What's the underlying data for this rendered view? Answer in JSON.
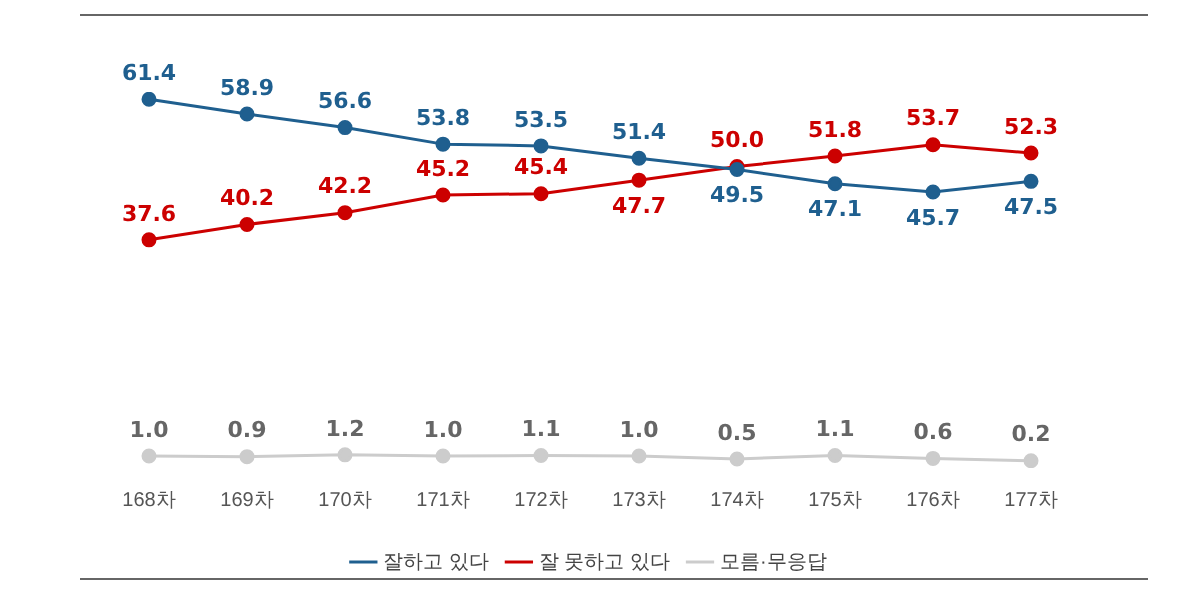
{
  "chart_data": {
    "type": "line",
    "categories": [
      "168차",
      "169차",
      "170차",
      "171차",
      "172차",
      "173차",
      "174차",
      "175차",
      "176차",
      "177차"
    ],
    "series": [
      {
        "name": "잘하고 있다",
        "color": "#1f5f8f",
        "values": [
          61.4,
          58.9,
          56.6,
          53.8,
          53.5,
          51.4,
          49.5,
          47.1,
          45.7,
          47.5
        ],
        "value_labels": [
          "61.4",
          "58.9",
          "56.6",
          "53.8",
          "53.5",
          "51.4",
          "49.5",
          "47.1",
          "45.7",
          "47.5"
        ]
      },
      {
        "name": "잘 못하고 있다",
        "color": "#cc0000",
        "values": [
          37.6,
          40.2,
          42.2,
          45.2,
          45.4,
          47.7,
          50.0,
          51.8,
          53.7,
          52.3
        ],
        "value_labels": [
          "37.6",
          "40.2",
          "42.2",
          "45.2",
          "45.4",
          "47.7",
          "50.0",
          "51.8",
          "53.7",
          "52.3"
        ]
      },
      {
        "name": "모름·무응답",
        "color": "#cccccc",
        "values": [
          1.0,
          0.9,
          1.2,
          1.0,
          1.1,
          1.0,
          0.5,
          1.1,
          0.6,
          0.2
        ],
        "value_labels": [
          "1.0",
          "0.9",
          "1.2",
          "1.0",
          "1.1",
          "1.0",
          "0.5",
          "1.1",
          "0.6",
          "0.2"
        ]
      }
    ],
    "grid": false,
    "legend": "bottom",
    "marker": "circle",
    "line_style": "solid"
  }
}
